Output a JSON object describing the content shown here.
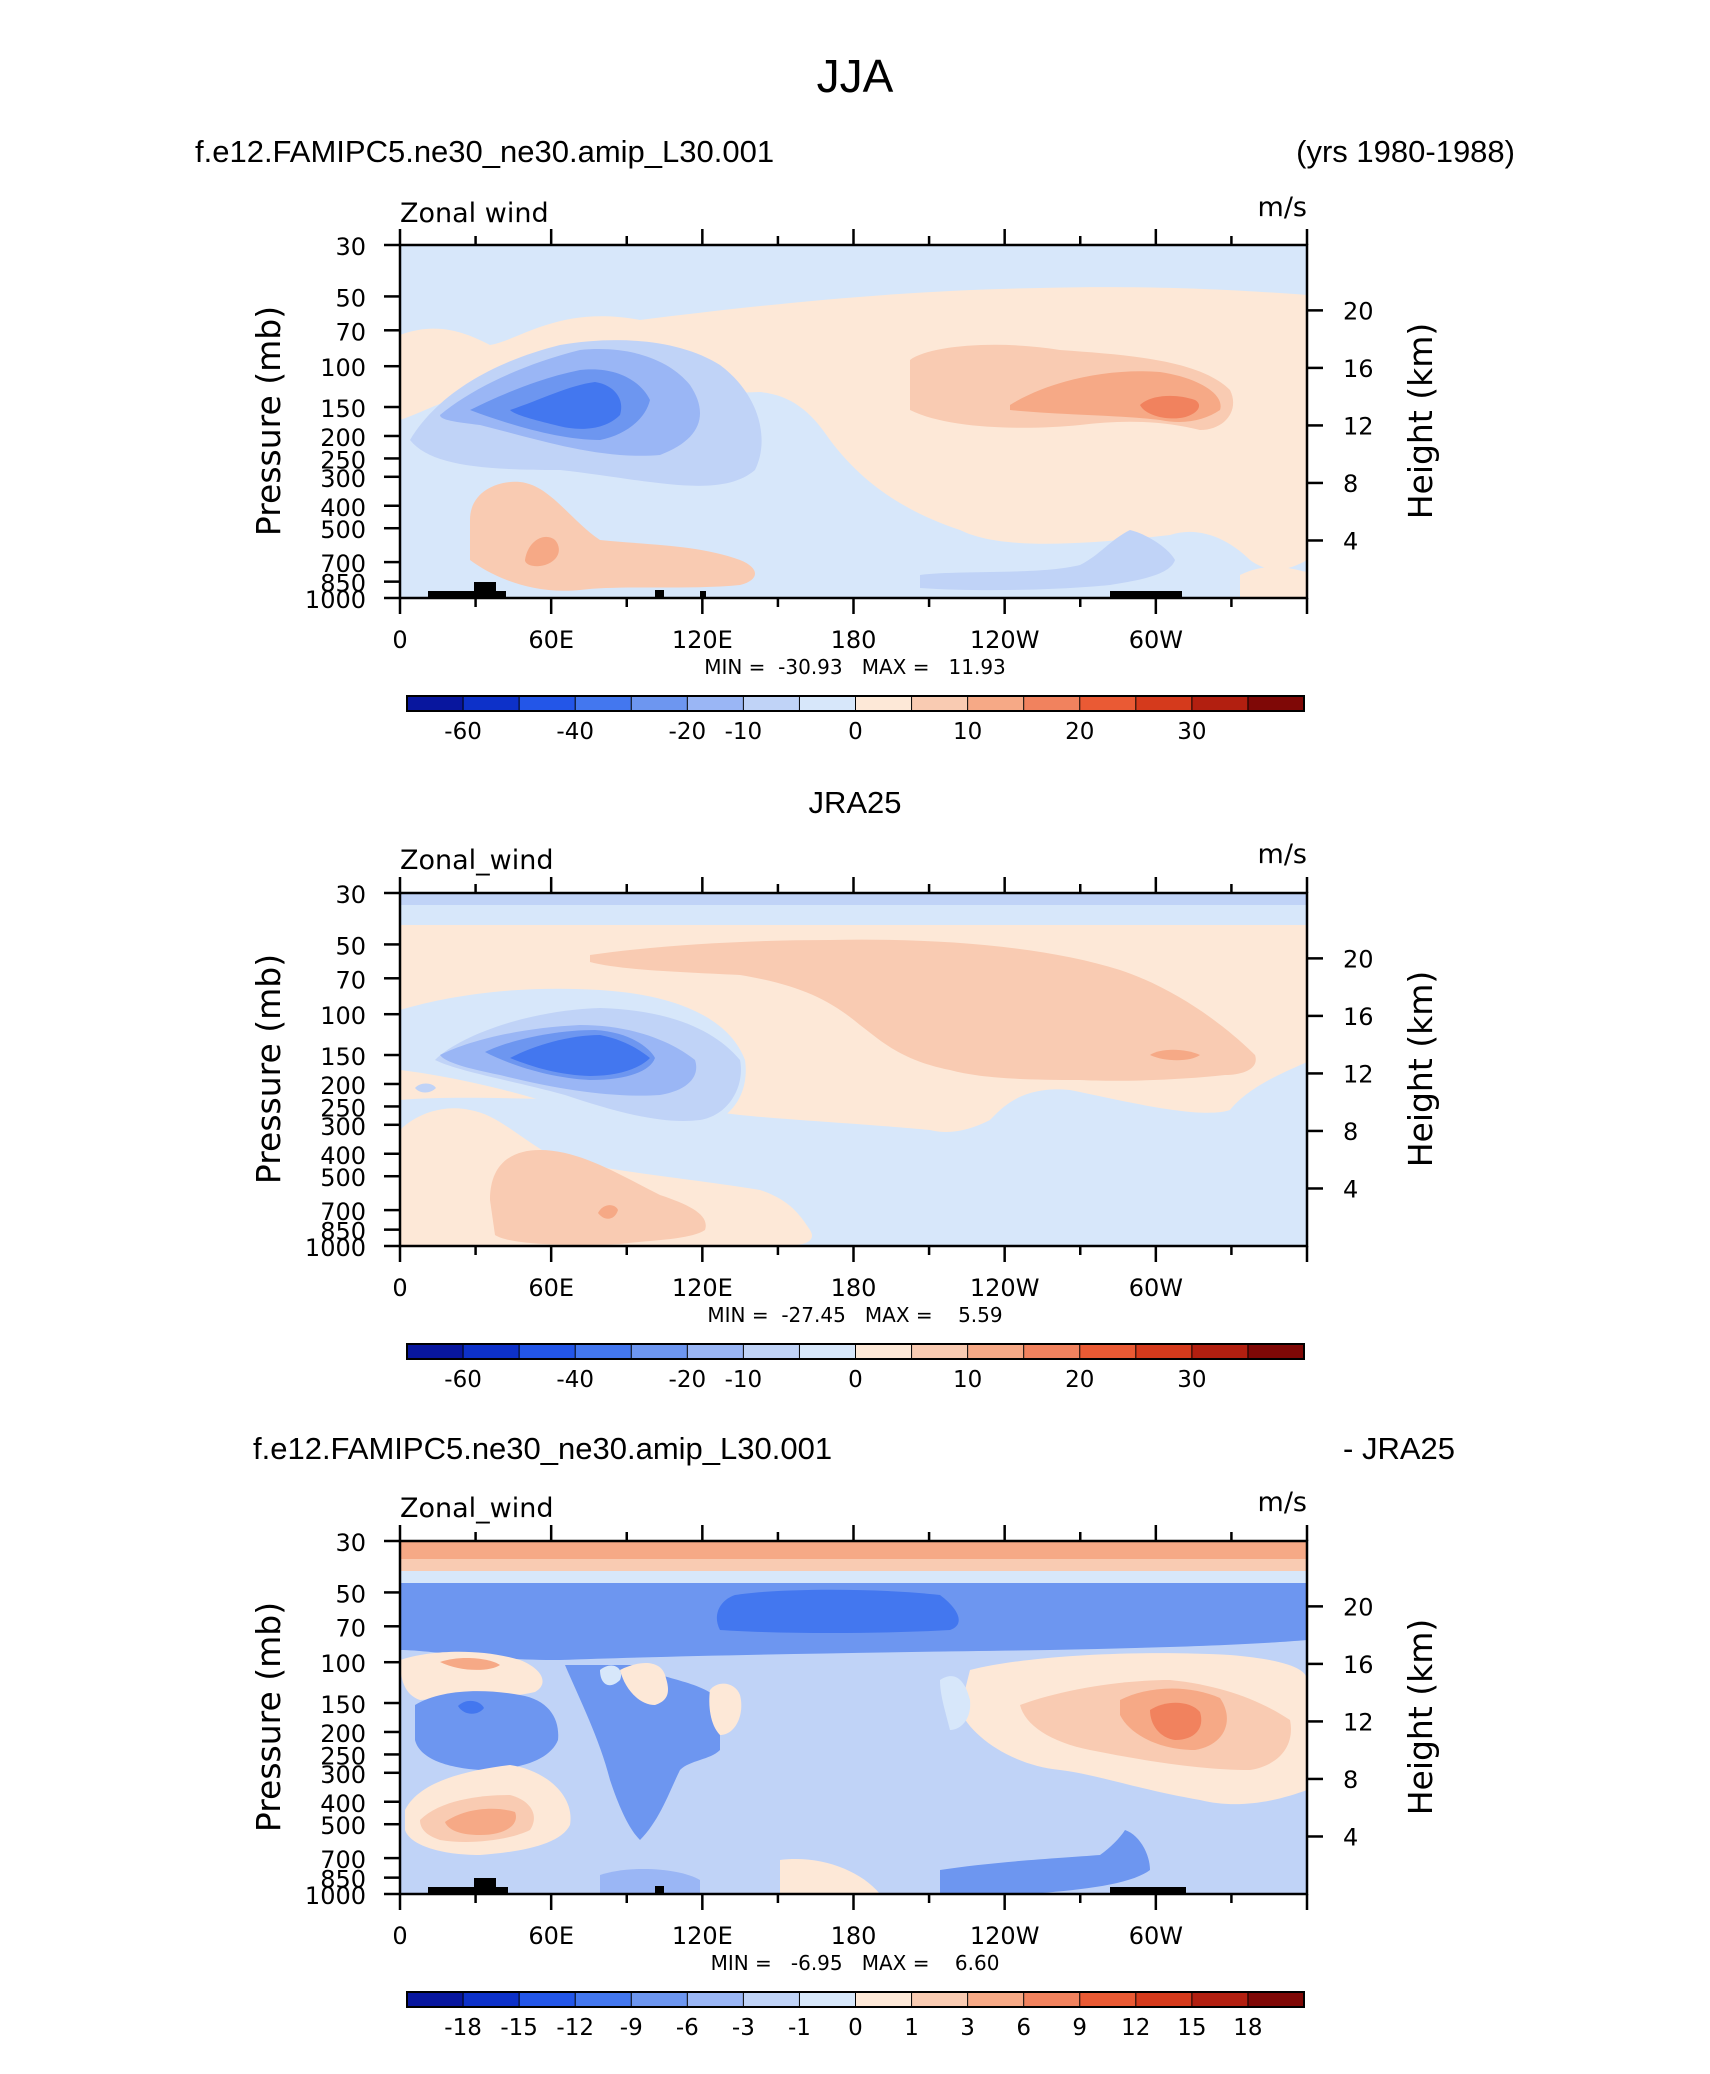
{
  "page": {
    "title": "JJA",
    "panel1_title_left": "f.e12.FAMIPC5.ne30_ne30.amip_L30.001",
    "panel1_title_right": "(yrs 1980-1988)",
    "panel2_title": "JRA25",
    "panel3_title_left": "f.e12.FAMIPC5.ne30_ne30.amip_L30.001",
    "panel3_title_right": "- JRA25"
  },
  "colors": {
    "blues": [
      "#08169e",
      "#0d31c9",
      "#2356e8",
      "#4377ef",
      "#6d96f0",
      "#9ab6f5",
      "#c0d3f7",
      "#d7e7fa"
    ],
    "reds": [
      "#fde8d7",
      "#f9cbb2",
      "#f6a986",
      "#f1825e",
      "#ea5a34",
      "#d53a1c",
      "#b21f10",
      "#7f0806"
    ]
  },
  "chart_data": [
    {
      "type": "heatmap",
      "left_label": "Zonal wind",
      "right_label": "m/s",
      "ylabel": "Pressure (mb)",
      "ylabel_right": "Height (km)",
      "x_ticks": [
        "0",
        "60E",
        "120E",
        "180",
        "120W",
        "60W"
      ],
      "y_ticks": [
        "30",
        "50",
        "70",
        "100",
        "150",
        "200",
        "250",
        "300",
        "400",
        "500",
        "700",
        "850",
        "1000"
      ],
      "height_ticks": [
        "20",
        "16",
        "12",
        "8",
        "4"
      ],
      "stats": "MIN =  -30.93   MAX =   11.93",
      "colorbar_labels": [
        "-60",
        "-40",
        "-20",
        "-10",
        "0",
        "10",
        "20",
        "30"
      ],
      "min": -30.93,
      "max": 11.93
    },
    {
      "type": "heatmap",
      "left_label": "Zonal_wind",
      "right_label": "m/s",
      "ylabel": "Pressure (mb)",
      "ylabel_right": "Height (km)",
      "x_ticks": [
        "0",
        "60E",
        "120E",
        "180",
        "120W",
        "60W"
      ],
      "y_ticks": [
        "30",
        "50",
        "70",
        "100",
        "150",
        "200",
        "250",
        "300",
        "400",
        "500",
        "700",
        "850",
        "1000"
      ],
      "height_ticks": [
        "20",
        "16",
        "12",
        "8",
        "4"
      ],
      "stats": "MIN =  -27.45   MAX =    5.59",
      "colorbar_labels": [
        "-60",
        "-40",
        "-20",
        "-10",
        "0",
        "10",
        "20",
        "30"
      ],
      "min": -27.45,
      "max": 5.59
    },
    {
      "type": "heatmap",
      "left_label": "Zonal_wind",
      "right_label": "m/s",
      "ylabel": "Pressure (mb)",
      "ylabel_right": "Height (km)",
      "x_ticks": [
        "0",
        "60E",
        "120E",
        "180",
        "120W",
        "60W"
      ],
      "y_ticks": [
        "30",
        "50",
        "70",
        "100",
        "150",
        "200",
        "250",
        "300",
        "400",
        "500",
        "700",
        "850",
        "1000"
      ],
      "height_ticks": [
        "20",
        "16",
        "12",
        "8",
        "4"
      ],
      "stats": "MIN =   -6.95   MAX =    6.60",
      "colorbar_labels": [
        "-18",
        "-15",
        "-12",
        "-9",
        "-6",
        "-3",
        "-1",
        "0",
        "1",
        "3",
        "6",
        "9",
        "12",
        "15",
        "18"
      ],
      "min": -6.95,
      "max": 6.6
    }
  ]
}
